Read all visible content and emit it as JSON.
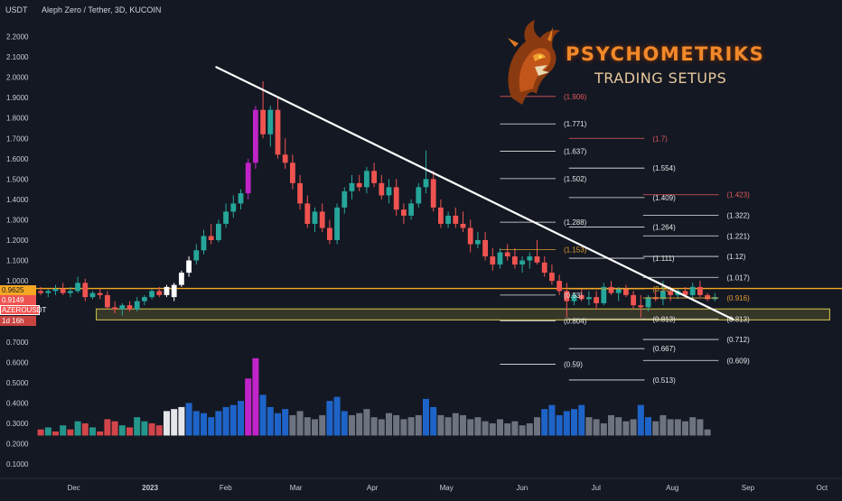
{
  "header": {
    "currency": "USDT",
    "title": "Aleph Zero / Tether, 3D, KUCOIN"
  },
  "brand": {
    "name": "PSYCHOMETRIKS",
    "subtitle": "TRADING SETUPS",
    "logo_icon": "dragon-head-icon"
  },
  "price_tags": {
    "top_value": "0.9625",
    "price": "0.9149",
    "symbol": "AZEROUSDT",
    "countdown": "1d 16h"
  },
  "colors": {
    "background": "#141823",
    "up": "#26a69a",
    "down": "#ef5350",
    "accent_orange": "#f5a623",
    "zone": "#d6c84a",
    "trendline": "#ffffff",
    "impulse": "#c024c8",
    "volume_blue": "#1e64c8",
    "volume_grey": "#6e7380"
  },
  "chart_data": {
    "type": "candlestick",
    "symbol": "AZEROUSDT",
    "timeframe": "3D",
    "exchange": "KUCOIN",
    "y_axis": {
      "min": 0.05,
      "max": 2.25,
      "ticks": [
        "2.2000",
        "2.1000",
        "2.0000",
        "1.9000",
        "1.8000",
        "1.7000",
        "1.6000",
        "1.5000",
        "1.4000",
        "1.3000",
        "1.2000",
        "1.1000",
        "1.0000",
        "0.9000",
        "0.8000",
        "0.7000",
        "0.6000",
        "0.5000",
        "0.4000",
        "0.3000",
        "0.2000",
        "0.1000"
      ]
    },
    "x_axis": {
      "ticks": [
        {
          "label": "Dec",
          "t": 3.5
        },
        {
          "label": "2023",
          "t": 13.8,
          "bold": true
        },
        {
          "label": "Feb",
          "t": 24
        },
        {
          "label": "Mar",
          "t": 33.5
        },
        {
          "label": "Apr",
          "t": 43.8
        },
        {
          "label": "May",
          "t": 53.8
        },
        {
          "label": "Jun",
          "t": 64
        },
        {
          "label": "Jul",
          "t": 74
        },
        {
          "label": "Aug",
          "t": 84.3
        },
        {
          "label": "Sep",
          "t": 94.5
        },
        {
          "label": "Oct",
          "t": 104.5
        }
      ]
    },
    "candles": [
      [
        0.95,
        0.97,
        0.93,
        0.94
      ],
      [
        0.94,
        0.96,
        0.92,
        0.95
      ],
      [
        0.95,
        0.98,
        0.93,
        0.96
      ],
      [
        0.96,
        0.99,
        0.93,
        0.94
      ],
      [
        0.94,
        0.97,
        0.92,
        0.95
      ],
      [
        0.95,
        1.02,
        0.94,
        0.99
      ],
      [
        0.99,
        1.01,
        0.9,
        0.92
      ],
      [
        0.92,
        0.95,
        0.91,
        0.94
      ],
      [
        0.94,
        0.96,
        0.91,
        0.93
      ],
      [
        0.93,
        0.95,
        0.86,
        0.87
      ],
      [
        0.87,
        0.9,
        0.84,
        0.86
      ],
      [
        0.86,
        0.89,
        0.83,
        0.88
      ],
      [
        0.88,
        0.9,
        0.85,
        0.86
      ],
      [
        0.86,
        0.92,
        0.85,
        0.9
      ],
      [
        0.9,
        0.93,
        0.88,
        0.92
      ],
      [
        0.92,
        0.96,
        0.91,
        0.95
      ],
      [
        0.95,
        0.97,
        0.92,
        0.93
      ],
      [
        0.93,
        0.98,
        0.92,
        0.97,
        "w"
      ],
      [
        0.92,
        0.99,
        0.9,
        0.98,
        "w"
      ],
      [
        0.98,
        1.05,
        0.97,
        1.04,
        "w"
      ],
      [
        1.04,
        1.12,
        1.02,
        1.1,
        "w"
      ],
      [
        1.1,
        1.18,
        1.08,
        1.15
      ],
      [
        1.15,
        1.25,
        1.13,
        1.22
      ],
      [
        1.22,
        1.28,
        1.18,
        1.2
      ],
      [
        1.2,
        1.3,
        1.19,
        1.28
      ],
      [
        1.28,
        1.38,
        1.26,
        1.34
      ],
      [
        1.34,
        1.42,
        1.31,
        1.38
      ],
      [
        1.38,
        1.45,
        1.35,
        1.43
      ],
      [
        1.43,
        1.6,
        1.4,
        1.58,
        "m"
      ],
      [
        1.58,
        1.86,
        1.55,
        1.84,
        "m"
      ],
      [
        1.84,
        1.98,
        1.7,
        1.72
      ],
      [
        1.72,
        1.86,
        1.66,
        1.84
      ],
      [
        1.84,
        1.9,
        1.6,
        1.62
      ],
      [
        1.62,
        1.7,
        1.55,
        1.58
      ],
      [
        1.58,
        1.62,
        1.45,
        1.48
      ],
      [
        1.48,
        1.52,
        1.35,
        1.38
      ],
      [
        1.38,
        1.42,
        1.26,
        1.28
      ],
      [
        1.28,
        1.36,
        1.24,
        1.34
      ],
      [
        1.34,
        1.38,
        1.24,
        1.26
      ],
      [
        1.26,
        1.3,
        1.18,
        1.2
      ],
      [
        1.2,
        1.38,
        1.18,
        1.36
      ],
      [
        1.36,
        1.46,
        1.33,
        1.44
      ],
      [
        1.44,
        1.52,
        1.4,
        1.48
      ],
      [
        1.48,
        1.52,
        1.44,
        1.46
      ],
      [
        1.46,
        1.56,
        1.43,
        1.54
      ],
      [
        1.54,
        1.58,
        1.46,
        1.48
      ],
      [
        1.48,
        1.52,
        1.4,
        1.42
      ],
      [
        1.42,
        1.5,
        1.38,
        1.46
      ],
      [
        1.46,
        1.5,
        1.32,
        1.35
      ],
      [
        1.35,
        1.38,
        1.28,
        1.32
      ],
      [
        1.32,
        1.4,
        1.3,
        1.38
      ],
      [
        1.38,
        1.48,
        1.36,
        1.46
      ],
      [
        1.46,
        1.64,
        1.43,
        1.5
      ],
      [
        1.5,
        1.54,
        1.34,
        1.36
      ],
      [
        1.36,
        1.4,
        1.26,
        1.28
      ],
      [
        1.28,
        1.34,
        1.26,
        1.32
      ],
      [
        1.32,
        1.36,
        1.26,
        1.28
      ],
      [
        1.28,
        1.34,
        1.24,
        1.26
      ],
      [
        1.26,
        1.3,
        1.14,
        1.18
      ],
      [
        1.18,
        1.24,
        1.16,
        1.2
      ],
      [
        1.2,
        1.24,
        1.1,
        1.12
      ],
      [
        1.12,
        1.16,
        1.05,
        1.08
      ],
      [
        1.08,
        1.16,
        1.06,
        1.14
      ],
      [
        1.14,
        1.18,
        1.1,
        1.12
      ],
      [
        1.12,
        1.16,
        1.06,
        1.08
      ],
      [
        1.08,
        1.12,
        1.04,
        1.1
      ],
      [
        1.1,
        1.14,
        1.06,
        1.12
      ],
      [
        1.12,
        1.2,
        1.08,
        1.09
      ],
      [
        1.09,
        1.12,
        1.02,
        1.04
      ],
      [
        1.04,
        1.08,
        0.98,
        1.0
      ],
      [
        1.0,
        1.03,
        0.93,
        0.95
      ],
      [
        0.95,
        0.99,
        0.82,
        0.9
      ],
      [
        0.9,
        0.94,
        0.88,
        0.93
      ],
      [
        0.93,
        0.96,
        0.9,
        0.91
      ],
      [
        0.91,
        0.95,
        0.88,
        0.92
      ],
      [
        0.92,
        0.95,
        0.86,
        0.89
      ],
      [
        0.89,
        0.99,
        0.88,
        0.97
      ],
      [
        0.97,
        1.0,
        0.93,
        0.94
      ],
      [
        0.94,
        0.97,
        0.9,
        0.96
      ],
      [
        0.96,
        0.98,
        0.92,
        0.93
      ],
      [
        0.93,
        0.95,
        0.86,
        0.88
      ],
      [
        0.88,
        0.93,
        0.82,
        0.87
      ],
      [
        0.87,
        0.93,
        0.85,
        0.92
      ],
      [
        0.92,
        0.96,
        0.9,
        0.91
      ],
      [
        0.91,
        1.0,
        0.88,
        0.95
      ],
      [
        0.95,
        0.97,
        0.9,
        0.93
      ],
      [
        0.93,
        0.96,
        0.91,
        0.95
      ],
      [
        0.95,
        0.97,
        0.92,
        0.93
      ],
      [
        0.93,
        0.99,
        0.91,
        0.97
      ],
      [
        0.97,
        1.0,
        0.92,
        0.93
      ],
      [
        0.93,
        0.94,
        0.9,
        0.91
      ],
      [
        0.91,
        0.94,
        0.9,
        0.92
      ]
    ],
    "volume": [
      [
        0.27,
        "r"
      ],
      [
        0.28,
        "g"
      ],
      [
        0.26,
        "r"
      ],
      [
        0.29,
        "g"
      ],
      [
        0.27,
        "r"
      ],
      [
        0.31,
        "g"
      ],
      [
        0.3,
        "r"
      ],
      [
        0.28,
        "g"
      ],
      [
        0.26,
        "r"
      ],
      [
        0.32,
        "r"
      ],
      [
        0.31,
        "r"
      ],
      [
        0.29,
        "g"
      ],
      [
        0.28,
        "r"
      ],
      [
        0.33,
        "g"
      ],
      [
        0.31,
        "g"
      ],
      [
        0.3,
        "r"
      ],
      [
        0.29,
        "r"
      ],
      [
        0.36,
        "w"
      ],
      [
        0.37,
        "w"
      ],
      [
        0.38,
        "w"
      ],
      [
        0.4,
        "b"
      ],
      [
        0.36,
        "b"
      ],
      [
        0.35,
        "b"
      ],
      [
        0.33,
        "b"
      ],
      [
        0.36,
        "b"
      ],
      [
        0.38,
        "b"
      ],
      [
        0.39,
        "b"
      ],
      [
        0.41,
        "b"
      ],
      [
        0.52,
        "m"
      ],
      [
        0.62,
        "m"
      ],
      [
        0.44,
        "b"
      ],
      [
        0.38,
        "b"
      ],
      [
        0.35,
        "b"
      ],
      [
        0.37,
        "b"
      ],
      [
        0.34,
        "s"
      ],
      [
        0.36,
        "s"
      ],
      [
        0.33,
        "s"
      ],
      [
        0.32,
        "s"
      ],
      [
        0.34,
        "s"
      ],
      [
        0.41,
        "b"
      ],
      [
        0.43,
        "b"
      ],
      [
        0.36,
        "b"
      ],
      [
        0.34,
        "s"
      ],
      [
        0.35,
        "s"
      ],
      [
        0.37,
        "s"
      ],
      [
        0.33,
        "s"
      ],
      [
        0.32,
        "s"
      ],
      [
        0.35,
        "s"
      ],
      [
        0.34,
        "s"
      ],
      [
        0.32,
        "s"
      ],
      [
        0.33,
        "s"
      ],
      [
        0.34,
        "s"
      ],
      [
        0.42,
        "b"
      ],
      [
        0.38,
        "b"
      ],
      [
        0.34,
        "s"
      ],
      [
        0.33,
        "s"
      ],
      [
        0.35,
        "s"
      ],
      [
        0.34,
        "s"
      ],
      [
        0.32,
        "s"
      ],
      [
        0.33,
        "s"
      ],
      [
        0.31,
        "s"
      ],
      [
        0.3,
        "s"
      ],
      [
        0.32,
        "s"
      ],
      [
        0.3,
        "s"
      ],
      [
        0.31,
        "s"
      ],
      [
        0.29,
        "s"
      ],
      [
        0.3,
        "s"
      ],
      [
        0.33,
        "s"
      ],
      [
        0.37,
        "b"
      ],
      [
        0.39,
        "b"
      ],
      [
        0.34,
        "b"
      ],
      [
        0.36,
        "b"
      ],
      [
        0.37,
        "b"
      ],
      [
        0.39,
        "b"
      ],
      [
        0.33,
        "s"
      ],
      [
        0.32,
        "s"
      ],
      [
        0.3,
        "s"
      ],
      [
        0.34,
        "s"
      ],
      [
        0.33,
        "s"
      ],
      [
        0.31,
        "s"
      ],
      [
        0.32,
        "s"
      ],
      [
        0.39,
        "b"
      ],
      [
        0.33,
        "b"
      ],
      [
        0.31,
        "s"
      ],
      [
        0.34,
        "s"
      ],
      [
        0.32,
        "s"
      ],
      [
        0.32,
        "s"
      ],
      [
        0.31,
        "s"
      ],
      [
        0.33,
        "s"
      ],
      [
        0.32,
        "s"
      ],
      [
        0.27,
        "s"
      ],
      [
        0.24,
        "s"
      ]
    ],
    "trendline": {
      "from": {
        "t": 24.2,
        "price": 2.05
      },
      "to": {
        "t": 94,
        "price": 0.81
      }
    },
    "support_zone": {
      "t_start": 8,
      "t_end": 107,
      "price_low": 0.808,
      "price_high": 0.862
    },
    "resistance_line": {
      "price": 0.9625
    },
    "fib_levels": [
      {
        "label": "(1.906)",
        "price": 1.906,
        "color": "red",
        "t_start": 62.5,
        "t_end": 70
      },
      {
        "label": "(1.771)",
        "price": 1.771,
        "color": "white",
        "t_start": 62.5,
        "t_end": 70
      },
      {
        "label": "(1.7)",
        "price": 1.7,
        "color": "red",
        "t_start": 71.8,
        "t_end": 82
      },
      {
        "label": "(1.637)",
        "price": 1.637,
        "color": "white",
        "t_start": 62.5,
        "t_end": 70
      },
      {
        "label": "(1.554)",
        "price": 1.554,
        "color": "white",
        "t_start": 71.8,
        "t_end": 82
      },
      {
        "label": "(1.502)",
        "price": 1.502,
        "color": "white",
        "t_start": 62.5,
        "t_end": 70
      },
      {
        "label": "(1.423)",
        "price": 1.423,
        "color": "red",
        "t_start": 81.8,
        "t_end": 92
      },
      {
        "label": "(1.409)",
        "price": 1.409,
        "color": "white",
        "t_start": 71.8,
        "t_end": 82
      },
      {
        "label": "(1.322)",
        "price": 1.322,
        "color": "white",
        "t_start": 81.8,
        "t_end": 92
      },
      {
        "label": "(1.288)",
        "price": 1.288,
        "color": "white",
        "t_start": 62.5,
        "t_end": 70
      },
      {
        "label": "(1.264)",
        "price": 1.264,
        "color": "white",
        "t_start": 71.8,
        "t_end": 82
      },
      {
        "label": "(1.221)",
        "price": 1.221,
        "color": "white",
        "t_start": 81.8,
        "t_end": 92
      },
      {
        "label": "(1.153)",
        "price": 1.153,
        "color": "orange",
        "t_start": 62.5,
        "t_end": 70
      },
      {
        "label": "(1.12)",
        "price": 1.12,
        "color": "white",
        "t_start": 81.8,
        "t_end": 92
      },
      {
        "label": "(1.111)",
        "price": 1.111,
        "color": "white",
        "t_start": 71.8,
        "t_end": 82
      },
      {
        "label": "(1.017)",
        "price": 1.017,
        "color": "white",
        "t_start": 81.8,
        "t_end": 92
      },
      {
        "label": "(0.96)",
        "price": 0.96,
        "color": "orange",
        "t_start": 71.8,
        "t_end": 82
      },
      {
        "label": "(0.93)",
        "price": 0.93,
        "color": "white",
        "t_start": 62.5,
        "t_end": 70
      },
      {
        "label": "(0.916)",
        "price": 0.916,
        "color": "orange",
        "t_start": 81.8,
        "t_end": 92
      },
      {
        "label": "(0.813)",
        "price": 0.813,
        "color": "white",
        "t_start": 71.8,
        "t_end": 82
      },
      {
        "label": "(0.813)",
        "price": 0.813,
        "color": "white",
        "t_start": 81.8,
        "t_end": 92
      },
      {
        "label": "(0.804)",
        "price": 0.804,
        "color": "white",
        "t_start": 62.5,
        "t_end": 70
      },
      {
        "label": "(0.712)",
        "price": 0.712,
        "color": "white",
        "t_start": 81.8,
        "t_end": 92
      },
      {
        "label": "(0.667)",
        "price": 0.667,
        "color": "white",
        "t_start": 71.8,
        "t_end": 82
      },
      {
        "label": "(0.609)",
        "price": 0.609,
        "color": "white",
        "t_start": 81.8,
        "t_end": 92
      },
      {
        "label": "(0.59)",
        "price": 0.59,
        "color": "white",
        "t_start": 62.5,
        "t_end": 70
      },
      {
        "label": "(0.513)",
        "price": 0.513,
        "color": "white",
        "t_start": 71.8,
        "t_end": 82
      }
    ]
  }
}
